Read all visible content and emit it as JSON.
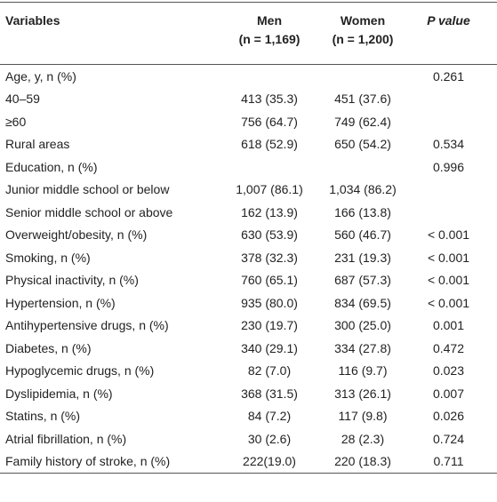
{
  "table": {
    "header": [
      [
        "Variables"
      ],
      [
        "Men",
        "(n = 1,169)"
      ],
      [
        "Women",
        "(n = 1,200)"
      ],
      [
        "P value"
      ]
    ],
    "rows": [
      [
        "Age, y, n (%)",
        null,
        null,
        "0.261"
      ],
      [
        "40–59",
        "413 (35.3)",
        "451 (37.6)",
        null
      ],
      [
        "≥60",
        "756 (64.7)",
        "749 (62.4)",
        null
      ],
      [
        "Rural areas",
        "618 (52.9)",
        "650 (54.2)",
        "0.534"
      ],
      [
        "Education, n (%)",
        null,
        null,
        "0.996"
      ],
      [
        "Junior middle school or below",
        "1,007 (86.1)",
        "1,034 (86.2)",
        null
      ],
      [
        "Senior middle school or above",
        "162 (13.9)",
        "166 (13.8)",
        null
      ],
      [
        "Overweight/obesity, n (%)",
        "630 (53.9)",
        "560 (46.7)",
        "< 0.001"
      ],
      [
        "Smoking, n (%)",
        "378 (32.3)",
        "231 (19.3)",
        "< 0.001"
      ],
      [
        "Physical inactivity, n (%)",
        "760 (65.1)",
        "687 (57.3)",
        "< 0.001"
      ],
      [
        "Hypertension, n (%)",
        "935 (80.0)",
        "834 (69.5)",
        "< 0.001"
      ],
      [
        "Antihypertensive drugs, n (%)",
        "230 (19.7)",
        "300 (25.0)",
        "0.001"
      ],
      [
        "Diabetes, n (%)",
        "340 (29.1)",
        "334 (27.8)",
        "0.472"
      ],
      [
        "Hypoglycemic drugs, n (%)",
        "82 (7.0)",
        "116 (9.7)",
        "0.023"
      ],
      [
        "Dyslipidemia, n (%)",
        "368 (31.5)",
        "313 (26.1)",
        "0.007"
      ],
      [
        "Statins, n (%)",
        "84 (7.2)",
        "117 (9.8)",
        "0.026"
      ],
      [
        "Atrial fibrillation, n (%)",
        "30 (2.6)",
        "28 (2.3)",
        "0.724"
      ],
      [
        "Family history of stroke, n (%)",
        "222(19.0)",
        "220 (18.3)",
        "0.711"
      ]
    ]
  }
}
